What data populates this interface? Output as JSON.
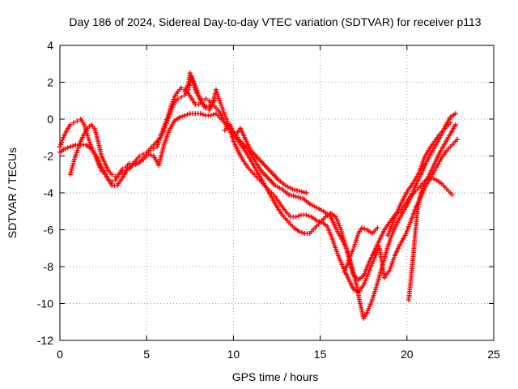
{
  "chart_data": {
    "type": "scatter",
    "title": "Day 186 of 2024, Sidereal Day-to-day VTEC variation (SDTVAR) for receiver p113",
    "xlabel": "GPS time / hours",
    "ylabel": "SDTVAR / TECUs",
    "xlim": [
      0,
      25
    ],
    "ylim": [
      -12,
      4
    ],
    "xticks": [
      0,
      5,
      10,
      15,
      20,
      25
    ],
    "yticks": [
      -12,
      -10,
      -8,
      -6,
      -4,
      -2,
      0,
      2,
      4
    ],
    "grid": true,
    "marker": "plus",
    "series_color": "#ff0000",
    "series": [
      {
        "points": [
          [
            0.0,
            -1.5
          ],
          [
            0.2,
            -1.0
          ],
          [
            0.4,
            -0.6
          ],
          [
            0.6,
            -0.3
          ],
          [
            0.8,
            -0.2
          ],
          [
            1.0,
            -0.1
          ],
          [
            1.2,
            0.0
          ],
          [
            1.4,
            -0.3
          ],
          [
            1.6,
            -0.9
          ],
          [
            1.8,
            -1.5
          ],
          [
            2.0,
            -1.9
          ],
          [
            2.2,
            -2.4
          ],
          [
            2.4,
            -2.8
          ],
          [
            2.6,
            -3.0
          ],
          [
            2.8,
            -3.3
          ],
          [
            3.0,
            -3.4
          ],
          [
            3.2,
            -3.3
          ],
          [
            3.4,
            -3.0
          ],
          [
            3.6,
            -2.7
          ],
          [
            3.8,
            -2.6
          ],
          [
            4.0,
            -2.4
          ],
          [
            4.2,
            -2.4
          ],
          [
            4.4,
            -2.4
          ],
          [
            4.6,
            -2.3
          ],
          [
            4.8,
            -2.1
          ],
          [
            5.0,
            -1.9
          ],
          [
            5.2,
            -1.7
          ],
          [
            5.4,
            -1.6
          ],
          [
            5.6,
            -1.5
          ],
          [
            5.8,
            -0.9
          ],
          [
            6.0,
            -0.4
          ],
          [
            6.2,
            0.1
          ],
          [
            6.4,
            0.7
          ],
          [
            6.6,
            1.2
          ],
          [
            6.8,
            1.5
          ],
          [
            7.0,
            1.7
          ],
          [
            7.2,
            1.6
          ],
          [
            7.4,
            1.4
          ],
          [
            7.6,
            1.1
          ],
          [
            7.8,
            0.8
          ],
          [
            8.0,
            0.8
          ],
          [
            8.2,
            1.0
          ],
          [
            8.4,
            1.1
          ],
          [
            8.6,
            1.0
          ],
          [
            8.8,
            0.8
          ],
          [
            9.0,
            0.6
          ],
          [
            9.2,
            0.4
          ],
          [
            9.4,
            0.0
          ],
          [
            9.6,
            -0.4
          ],
          [
            9.8,
            -0.6
          ],
          [
            10.0,
            -0.7
          ],
          [
            10.4,
            -1.2
          ],
          [
            10.8,
            -1.6
          ],
          [
            11.2,
            -2.2
          ],
          [
            11.6,
            -2.8
          ],
          [
            12.0,
            -3.2
          ],
          [
            12.4,
            -3.6
          ],
          [
            12.8,
            -3.8
          ],
          [
            13.2,
            -4.1
          ],
          [
            13.6,
            -4.2
          ],
          [
            14.0,
            -4.3
          ],
          [
            14.4,
            -4.6
          ],
          [
            14.8,
            -4.8
          ],
          [
            15.2,
            -5.0
          ],
          [
            15.6,
            -5.3
          ],
          [
            16.0,
            -6.1
          ],
          [
            16.3,
            -6.6
          ],
          [
            16.6,
            -7.2
          ],
          [
            16.9,
            -8.4
          ],
          [
            17.2,
            -8.7
          ],
          [
            17.5,
            -8.5
          ],
          [
            17.8,
            -7.8
          ],
          [
            18.1,
            -7.2
          ],
          [
            18.4,
            -6.6
          ],
          [
            18.7,
            -6.0
          ],
          [
            19.0,
            -5.6
          ],
          [
            19.3,
            -5.2
          ],
          [
            19.6,
            -5.0
          ],
          [
            19.9,
            -4.6
          ],
          [
            20.2,
            -4.2
          ],
          [
            20.5,
            -3.9
          ],
          [
            20.8,
            -3.6
          ],
          [
            21.1,
            -3.3
          ],
          [
            21.4,
            -3.2
          ],
          [
            21.7,
            -3.3
          ],
          [
            22.0,
            -3.5
          ],
          [
            22.3,
            -3.8
          ],
          [
            22.6,
            -4.1
          ]
        ]
      },
      {
        "points": [
          [
            0.0,
            -1.8
          ],
          [
            0.3,
            -1.6
          ],
          [
            0.6,
            -1.5
          ],
          [
            0.9,
            -1.4
          ],
          [
            1.2,
            -1.4
          ],
          [
            1.5,
            -1.4
          ],
          [
            1.8,
            -1.6
          ],
          [
            2.1,
            -2.0
          ],
          [
            2.4,
            -2.6
          ],
          [
            2.7,
            -3.1
          ],
          [
            3.0,
            -3.6
          ],
          [
            3.3,
            -3.6
          ],
          [
            3.6,
            -3.2
          ],
          [
            3.9,
            -2.7
          ],
          [
            4.2,
            -2.5
          ],
          [
            4.5,
            -2.4
          ],
          [
            4.8,
            -2.2
          ],
          [
            5.1,
            -1.9
          ],
          [
            5.4,
            -2.0
          ],
          [
            5.7,
            -2.5
          ],
          [
            6.0,
            -1.4
          ],
          [
            6.3,
            -0.6
          ],
          [
            6.6,
            -0.1
          ],
          [
            6.9,
            0.1
          ],
          [
            7.2,
            0.2
          ],
          [
            7.5,
            0.3
          ],
          [
            7.8,
            0.3
          ],
          [
            8.1,
            0.3
          ],
          [
            8.4,
            0.2
          ],
          [
            8.7,
            0.2
          ],
          [
            9.0,
            0.3
          ],
          [
            9.3,
            0.0
          ],
          [
            9.6,
            -0.3
          ],
          [
            9.9,
            -0.7
          ],
          [
            10.2,
            -1.1
          ],
          [
            10.5,
            -1.5
          ],
          [
            10.8,
            -1.9
          ],
          [
            11.1,
            -2.4
          ],
          [
            11.4,
            -2.9
          ],
          [
            11.7,
            -3.4
          ],
          [
            12.0,
            -3.9
          ],
          [
            12.3,
            -4.4
          ],
          [
            12.6,
            -4.9
          ],
          [
            12.9,
            -5.3
          ],
          [
            13.2,
            -5.6
          ],
          [
            13.5,
            -5.9
          ],
          [
            13.8,
            -6.1
          ],
          [
            14.1,
            -6.2
          ],
          [
            14.4,
            -6.2
          ],
          [
            14.7,
            -5.9
          ],
          [
            15.0,
            -5.6
          ],
          [
            15.3,
            -5.3
          ],
          [
            15.6,
            -5.1
          ],
          [
            15.9,
            -5.3
          ],
          [
            16.2,
            -6.0
          ],
          [
            16.5,
            -7.0
          ],
          [
            16.8,
            -8.0
          ],
          [
            17.1,
            -9.0
          ],
          [
            17.3,
            -10.0
          ],
          [
            17.5,
            -10.8
          ],
          [
            17.7,
            -10.5
          ],
          [
            18.0,
            -9.8
          ],
          [
            18.3,
            -8.9
          ],
          [
            18.6,
            -7.9
          ],
          [
            18.9,
            -6.9
          ],
          [
            19.2,
            -6.1
          ],
          [
            19.5,
            -5.5
          ],
          [
            19.8,
            -5.0
          ],
          [
            20.1,
            -4.5
          ],
          [
            20.4,
            -3.8
          ],
          [
            20.7,
            -3.2
          ],
          [
            21.0,
            -2.6
          ],
          [
            21.3,
            -2.0
          ],
          [
            21.6,
            -1.5
          ],
          [
            21.9,
            -1.0
          ],
          [
            22.2,
            -0.4
          ],
          [
            22.5,
            0.1
          ],
          [
            22.8,
            0.3
          ]
        ]
      },
      {
        "points": [
          [
            0.6,
            -3.0
          ],
          [
            0.8,
            -2.3
          ],
          [
            1.0,
            -1.7
          ],
          [
            1.2,
            -1.2
          ],
          [
            1.4,
            -0.8
          ],
          [
            1.6,
            -0.5
          ],
          [
            1.8,
            -0.3
          ],
          [
            2.0,
            -0.5
          ],
          [
            2.2,
            -1.2
          ],
          [
            2.4,
            -2.0
          ],
          [
            2.6,
            -2.4
          ],
          [
            2.8,
            -2.8
          ],
          [
            3.0,
            -3.0
          ],
          [
            3.2,
            -3.1
          ],
          [
            3.4,
            -3.0
          ],
          [
            3.6,
            -2.9
          ],
          [
            3.8,
            -2.8
          ],
          [
            4.0,
            -2.7
          ],
          [
            4.2,
            -2.5
          ],
          [
            4.4,
            -2.2
          ],
          [
            4.6,
            -2.0
          ],
          [
            4.8,
            -1.9
          ],
          [
            5.0,
            -1.8
          ],
          [
            5.2,
            -1.6
          ],
          [
            5.4,
            -1.4
          ],
          [
            5.6,
            -1.2
          ],
          [
            5.8,
            -1.0
          ],
          [
            6.0,
            -0.6
          ],
          [
            6.2,
            -0.1
          ],
          [
            6.4,
            0.4
          ],
          [
            6.6,
            0.9
          ],
          [
            6.8,
            1.1
          ],
          [
            7.0,
            1.2
          ],
          [
            7.2,
            1.3
          ],
          [
            7.4,
            1.6
          ],
          [
            7.6,
            2.3
          ],
          [
            7.8,
            1.8
          ],
          [
            8.0,
            1.3
          ],
          [
            8.2,
            0.9
          ],
          [
            8.4,
            0.6
          ],
          [
            8.6,
            0.5
          ],
          [
            8.8,
            0.8
          ],
          [
            9.0,
            1.6
          ],
          [
            9.2,
            1.0
          ],
          [
            9.4,
            0.5
          ],
          [
            9.6,
            0.0
          ],
          [
            9.8,
            -0.6
          ],
          [
            10.0,
            -1.2
          ],
          [
            10.3,
            -1.8
          ],
          [
            10.6,
            -2.3
          ],
          [
            10.9,
            -2.7
          ],
          [
            11.2,
            -3.0
          ],
          [
            11.5,
            -3.3
          ],
          [
            11.8,
            -3.6
          ],
          [
            12.1,
            -3.9
          ],
          [
            12.4,
            -4.2
          ],
          [
            12.7,
            -4.6
          ],
          [
            13.0,
            -5.0
          ],
          [
            13.3,
            -5.3
          ],
          [
            13.6,
            -5.3
          ],
          [
            13.9,
            -5.2
          ],
          [
            14.2,
            -5.2
          ],
          [
            14.5,
            -5.3
          ],
          [
            14.8,
            -5.5
          ],
          [
            15.1,
            -5.6
          ],
          [
            15.4,
            -5.8
          ],
          [
            15.7,
            -6.5
          ],
          [
            16.0,
            -7.3
          ],
          [
            16.3,
            -8.0
          ],
          [
            16.6,
            -8.6
          ],
          [
            16.9,
            -9.2
          ],
          [
            17.2,
            -9.4
          ],
          [
            17.5,
            -9.0
          ],
          [
            17.8,
            -8.3
          ],
          [
            18.1,
            -7.6
          ],
          [
            18.4,
            -6.9
          ],
          [
            18.7,
            -8.6
          ],
          [
            19.0,
            -8.2
          ],
          [
            19.3,
            -7.4
          ],
          [
            19.6,
            -6.8
          ],
          [
            19.9,
            -6.3
          ],
          [
            20.2,
            -5.6
          ],
          [
            20.5,
            -4.8
          ],
          [
            20.8,
            -4.2
          ],
          [
            21.1,
            -3.6
          ],
          [
            21.4,
            -3.1
          ],
          [
            21.7,
            -2.6
          ],
          [
            22.0,
            -2.1
          ],
          [
            22.3,
            -1.7
          ],
          [
            22.6,
            -1.4
          ],
          [
            22.9,
            -1.1
          ]
        ]
      },
      {
        "points": [
          [
            20.1,
            -9.8
          ],
          [
            20.2,
            -9.0
          ],
          [
            20.3,
            -8.0
          ],
          [
            20.4,
            -7.0
          ],
          [
            20.5,
            -6.0
          ],
          [
            20.6,
            -5.0
          ],
          [
            20.7,
            -4.5
          ],
          [
            20.8,
            -4.0
          ],
          [
            21.0,
            -3.5
          ],
          [
            21.3,
            -3.0
          ],
          [
            21.6,
            -2.4
          ],
          [
            21.9,
            -1.8
          ],
          [
            22.2,
            -1.3
          ],
          [
            22.5,
            -0.8
          ],
          [
            22.8,
            -0.3
          ]
        ]
      },
      {
        "points": [
          [
            16.4,
            -8.3
          ],
          [
            16.6,
            -7.8
          ],
          [
            16.8,
            -7.3
          ],
          [
            17.0,
            -6.8
          ],
          [
            17.2,
            -6.2
          ],
          [
            17.4,
            -5.9
          ],
          [
            17.7,
            -6.0
          ],
          [
            18.0,
            -6.2
          ],
          [
            18.3,
            -5.9
          ]
        ]
      },
      {
        "points": [
          [
            7.2,
            1.5
          ],
          [
            7.4,
            1.9
          ],
          [
            7.5,
            2.5
          ],
          [
            7.6,
            2.2
          ],
          [
            7.8,
            1.6
          ],
          [
            8.0,
            1.2
          ],
          [
            8.3,
            0.7
          ],
          [
            8.6,
            0.7
          ],
          [
            8.9,
            1.0
          ]
        ]
      },
      {
        "points": [
          [
            9.5,
            -0.6
          ],
          [
            9.8,
            -0.3
          ],
          [
            10.1,
            -0.9
          ],
          [
            10.4,
            -0.5
          ],
          [
            10.7,
            -1.1
          ],
          [
            11.0,
            -1.7
          ],
          [
            11.4,
            -2.1
          ],
          [
            11.8,
            -2.5
          ],
          [
            12.2,
            -2.9
          ],
          [
            12.6,
            -3.3
          ],
          [
            13.0,
            -3.6
          ],
          [
            13.4,
            -3.8
          ],
          [
            13.8,
            -3.9
          ],
          [
            14.2,
            -4.0
          ]
        ]
      },
      {
        "points": [
          [
            18.9,
            -6.3
          ],
          [
            19.2,
            -5.6
          ],
          [
            19.5,
            -4.9
          ],
          [
            19.8,
            -4.3
          ],
          [
            20.1,
            -3.8
          ],
          [
            20.4,
            -3.4
          ],
          [
            20.7,
            -2.9
          ],
          [
            21.0,
            -2.1
          ],
          [
            21.3,
            -1.6
          ],
          [
            21.6,
            -1.2
          ],
          [
            21.9,
            -0.8
          ],
          [
            22.2,
            -0.5
          ],
          [
            22.5,
            -0.2
          ]
        ]
      }
    ]
  }
}
